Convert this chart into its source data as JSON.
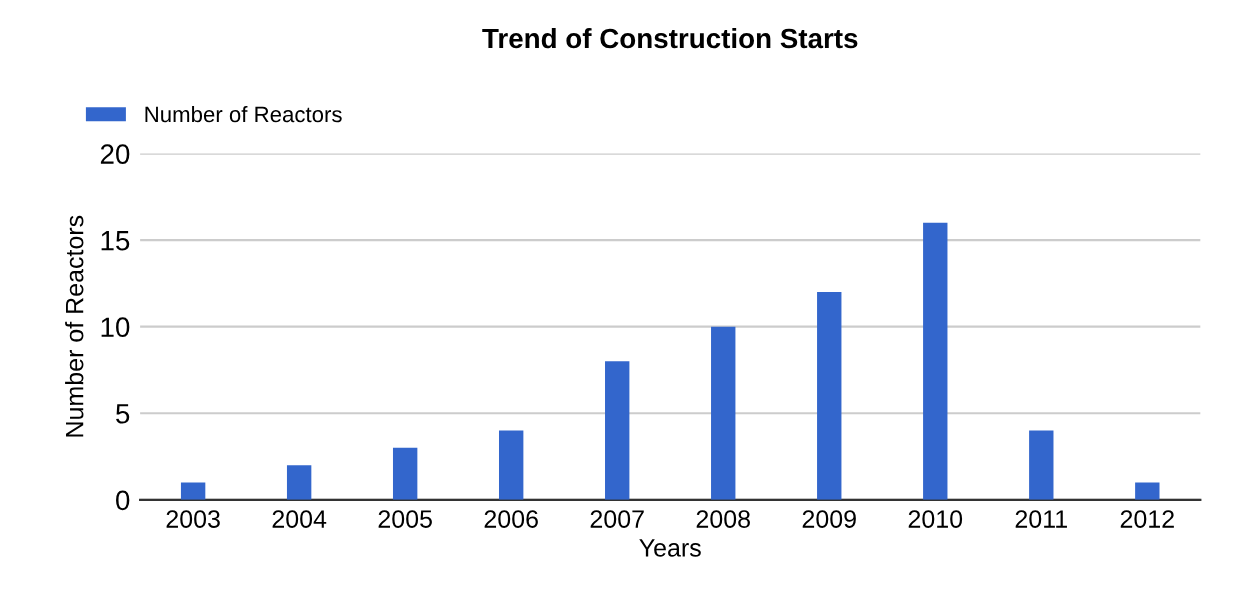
{
  "chart_data": {
    "type": "bar",
    "title": "Trend of Construction Starts",
    "xlabel": "Years",
    "ylabel": "Number of Reactors",
    "categories": [
      "2003",
      "2004",
      "2005",
      "2006",
      "2007",
      "2008",
      "2009",
      "2010",
      "2011",
      "2012"
    ],
    "series": [
      {
        "name": "Number of Reactors",
        "color": "#3366cc",
        "values": [
          1,
          2,
          3,
          4,
          8,
          10,
          12,
          16,
          4,
          1
        ]
      }
    ],
    "ylim": [
      0,
      20
    ],
    "yticks": [
      0,
      5,
      10,
      15,
      20
    ],
    "grid": "y",
    "legend": "top left"
  }
}
